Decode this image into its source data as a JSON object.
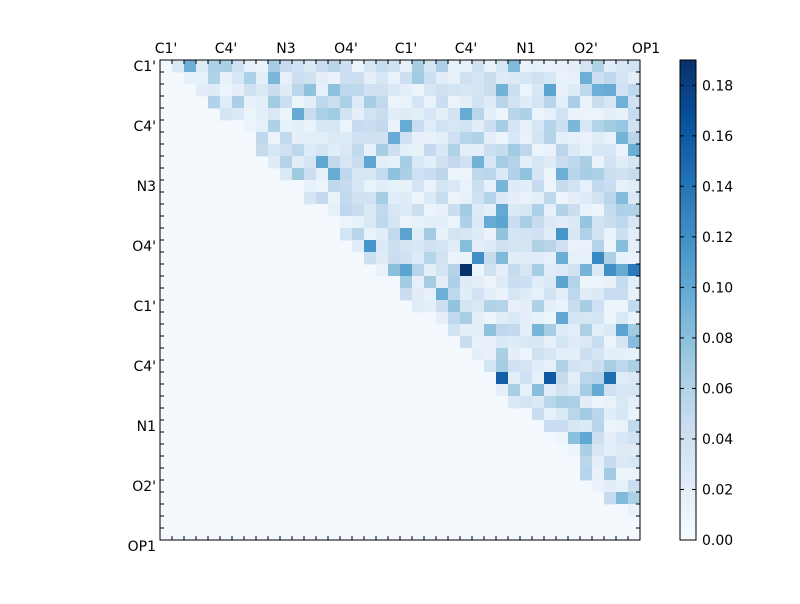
{
  "chart_data": {
    "type": "heatmap",
    "title": "",
    "xlabel": "",
    "ylabel": "",
    "n": 40,
    "tick_labels": [
      "C1'",
      "C4'",
      "N3",
      "O4'",
      "C1'",
      "C4'",
      "N1",
      "O2'",
      "OP1"
    ],
    "tick_indices": [
      0,
      5,
      10,
      15,
      20,
      25,
      30,
      35,
      40
    ],
    "x_axis_position": "top",
    "matrix": "upper-triangular",
    "base_value": 0.003,
    "colormap": "Blues",
    "colors": [
      "#f7fbff",
      "#deebf7",
      "#c6dbef",
      "#9ecae1",
      "#6baed6",
      "#4292c6",
      "#2171b5",
      "#08519c",
      "#08306b"
    ],
    "colorbar": {
      "vmin": 0.0,
      "vmax": 0.19,
      "ticks": [
        "0.00",
        "0.02",
        "0.04",
        "0.06",
        "0.08",
        "0.10",
        "0.12",
        "0.14",
        "0.16",
        "0.18"
      ]
    },
    "peak_cells": [
      {
        "row": 17,
        "col": 25,
        "value": 0.19
      },
      {
        "row": 17,
        "col": 39,
        "value": 0.135
      },
      {
        "row": 26,
        "col": 28,
        "value": 0.155
      },
      {
        "row": 26,
        "col": 32,
        "value": 0.16
      },
      {
        "row": 26,
        "col": 37,
        "value": 0.145
      },
      {
        "row": 15,
        "col": 17,
        "value": 0.115
      },
      {
        "row": 14,
        "col": 33,
        "value": 0.115
      },
      {
        "row": 16,
        "col": 26,
        "value": 0.12
      },
      {
        "row": 16,
        "col": 36,
        "value": 0.125
      },
      {
        "row": 17,
        "col": 37,
        "value": 0.12
      }
    ]
  }
}
